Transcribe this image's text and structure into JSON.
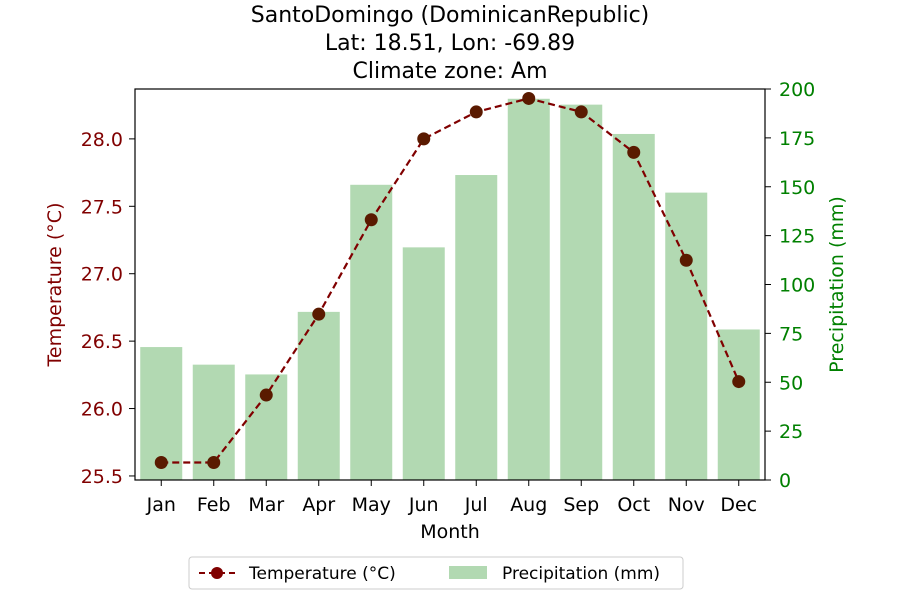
{
  "colors": {
    "temperature": "#800000",
    "temperature_marker": "#5a1a00",
    "precipitation": "#b2d9b2",
    "precip_axis": "#008000",
    "axis": "#000000"
  },
  "chart_data": {
    "type": "bar+line",
    "title_lines": [
      "SantoDomingo (DominicanRepublic)",
      "Lat: 18.51, Lon: -69.89",
      "Climate zone: Am"
    ],
    "xlabel": "Month",
    "ylabel_left": "Temperature (°C)",
    "ylabel_right": "Precipitation (mm)",
    "categories": [
      "Jan",
      "Feb",
      "Mar",
      "Apr",
      "May",
      "Jun",
      "Jul",
      "Aug",
      "Sep",
      "Oct",
      "Nov",
      "Dec"
    ],
    "series": [
      {
        "name": "Temperature (°C)",
        "type": "line",
        "axis": "left",
        "style": "dashed with circle markers",
        "values": [
          25.6,
          25.6,
          26.1,
          26.7,
          27.4,
          28.0,
          28.2,
          28.3,
          28.2,
          27.9,
          27.1,
          26.2
        ]
      },
      {
        "name": "Precipitation (mm)",
        "type": "bar",
        "axis": "right",
        "values": [
          68,
          59,
          54,
          86,
          151,
          119,
          156,
          195,
          192,
          177,
          147,
          77
        ]
      }
    ],
    "ylim_left": [
      25.47,
      28.37
    ],
    "yticks_left": [
      "25.5",
      "26.0",
      "26.5",
      "27.0",
      "27.5",
      "28.0"
    ],
    "ylim_right": [
      0,
      200
    ],
    "yticks_right": [
      "0",
      "25",
      "50",
      "75",
      "100",
      "125",
      "150",
      "175",
      "200"
    ],
    "grid": false,
    "legend_position": "bottom-center"
  }
}
